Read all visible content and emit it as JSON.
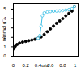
{
  "chart_data": {
    "type": "scatter",
    "x_label": "p/p°",
    "y_label": "n/mmol g⁻¹",
    "xlim": [
      0,
      1.05
    ],
    "ylim": [
      0,
      5.6
    ],
    "xticks": [
      0,
      0.2,
      0.4,
      0.6,
      0.8,
      {
        "value": 1,
        "label": "1"
      }
    ],
    "yticks": [
      0,
      1,
      2,
      3,
      4,
      5
    ],
    "series": [
      {
        "color": "#000000",
        "marker": "circle",
        "line_style": "none",
        "x": [
          0.01,
          0.03,
          0.06,
          0.1,
          0.15,
          0.2,
          0.25,
          0.3,
          0.35,
          0.4,
          0.45,
          0.5,
          0.55,
          0.6,
          0.65,
          0.7,
          0.75,
          0.8,
          0.85,
          0.9,
          0.95,
          0.99
        ],
        "values": [
          0.8,
          1.05,
          1.25,
          1.4,
          1.5,
          1.58,
          1.65,
          1.72,
          1.8,
          1.9,
          2.05,
          2.3,
          2.6,
          2.9,
          3.2,
          3.5,
          3.75,
          4.0,
          4.3,
          4.55,
          4.8,
          5.3
        ]
      },
      {
        "color": "#3cc0e6",
        "marker": "circle_open",
        "line_style": "solid",
        "x": [
          0.99,
          0.95,
          0.9,
          0.85,
          0.8,
          0.75,
          0.7,
          0.65,
          0.6,
          0.55,
          0.5,
          0.47,
          0.45,
          0.43,
          0.4
        ],
        "values": [
          5.3,
          5.05,
          4.95,
          4.9,
          4.85,
          4.82,
          4.8,
          4.78,
          4.75,
          4.7,
          4.6,
          4.3,
          3.2,
          2.2,
          1.9
        ]
      }
    ]
  }
}
